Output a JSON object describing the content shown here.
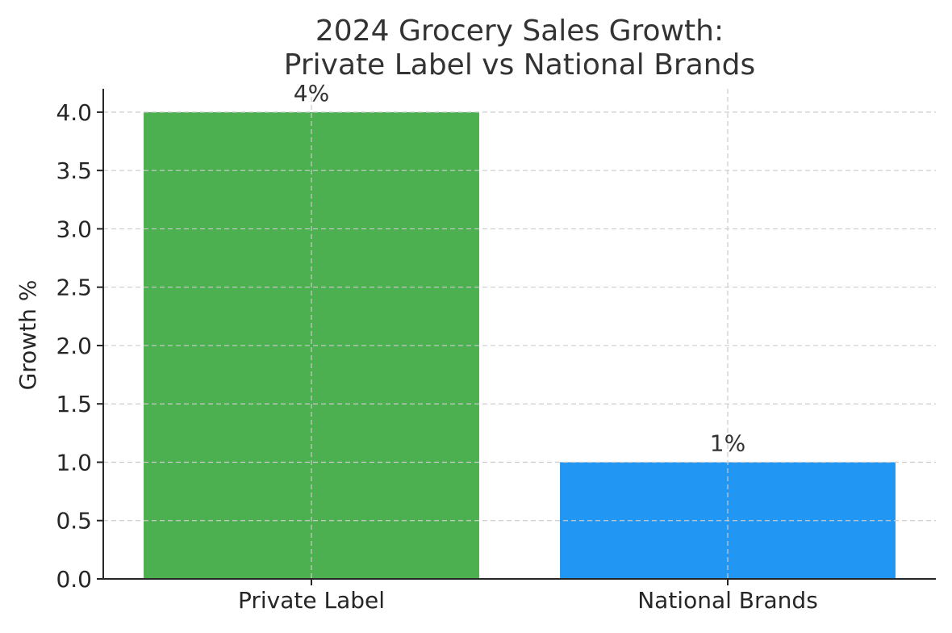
{
  "chart_data": {
    "type": "bar",
    "title": [
      "2024 Grocery Sales Growth:",
      "Private Label vs National Brands"
    ],
    "xlabel": "",
    "ylabel": "Growth %",
    "categories": [
      "Private Label",
      "National Brands"
    ],
    "values": [
      4,
      1
    ],
    "data_labels": [
      "4%",
      "1%"
    ],
    "bar_colors": [
      "#4caf50",
      "#2196f3"
    ],
    "ylim": [
      0,
      4.2
    ],
    "yticks": [
      0.0,
      0.5,
      1.0,
      1.5,
      2.0,
      2.5,
      3.0,
      3.5,
      4.0
    ],
    "ytick_labels": [
      "0.0",
      "0.5",
      "1.0",
      "1.5",
      "2.0",
      "2.5",
      "3.0",
      "3.5",
      "4.0"
    ],
    "grid": true,
    "legend": "none"
  }
}
